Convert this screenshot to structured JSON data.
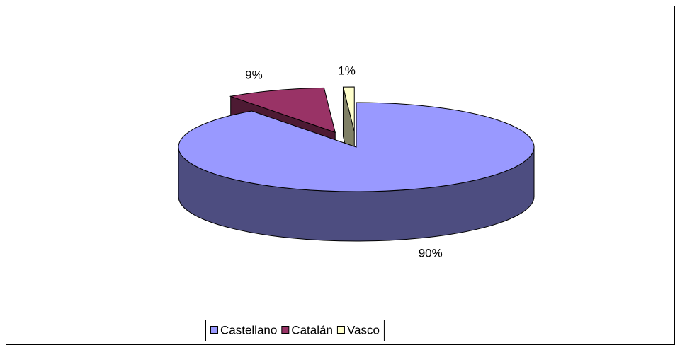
{
  "chart_data": {
    "type": "pie3d",
    "categories": [
      "Castellano",
      "Catalán",
      "Vasco"
    ],
    "values": [
      90,
      9,
      1
    ],
    "value_labels": [
      "90%",
      "9%",
      "1%"
    ],
    "colors": [
      "#9999ff",
      "#993366",
      "#ffffcc"
    ],
    "legend": "bottom"
  }
}
